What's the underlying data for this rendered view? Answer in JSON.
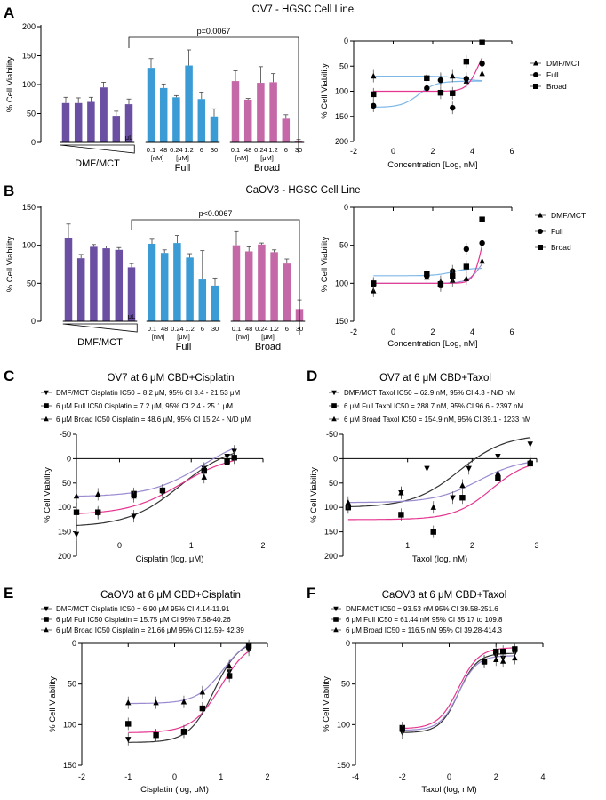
{
  "panels": {
    "A": {
      "letter": "A",
      "title": "OV7 - HGSC Cell Line"
    },
    "B": {
      "letter": "B",
      "title": "CaOV3 - HGSC Cell Line"
    },
    "C": {
      "letter": "C"
    },
    "D": {
      "letter": "D"
    },
    "E": {
      "letter": "E"
    },
    "F": {
      "letter": "F"
    }
  },
  "colors": {
    "dmf": "#6a4fa3",
    "full": "#3a9bd5",
    "broad": "#c468a8",
    "fit_black": "#333333",
    "fit_pink": "#e6358f",
    "fit_lavender": "#9b8ad0",
    "fit_lightblue": "#7db8e8"
  },
  "chart_data": [
    {
      "id": "A-bar",
      "type": "bar",
      "title": "OV7 - HGSC Cell Line",
      "ylabel": "% Cell Viability",
      "ylim": [
        0,
        200
      ],
      "yticks": [
        0,
        50,
        100,
        150,
        200
      ],
      "significance": "p=0.0067",
      "unit_label": "μL",
      "group_labels": [
        "DMF/MCT",
        "Full",
        "Broad"
      ],
      "tick_labels": [
        "0.1",
        "48",
        "0.24",
        "1.2",
        "6",
        "30"
      ],
      "sub_labels": [
        "[nM]",
        "[μM]"
      ],
      "series": [
        {
          "name": "DMF/MCT",
          "values": [
            68,
            68,
            70,
            95,
            46,
            66
          ],
          "errors": [
            10,
            9,
            8,
            9,
            8,
            9
          ]
        },
        {
          "name": "Full",
          "values": [
            129,
            94,
            78,
            133,
            75,
            45
          ],
          "errors": [
            16,
            7,
            3,
            27,
            12,
            13
          ]
        },
        {
          "name": "Broad",
          "values": [
            106,
            74,
            103,
            104,
            41,
            3
          ],
          "errors": [
            18,
            2,
            28,
            15,
            7,
            2
          ]
        }
      ]
    },
    {
      "id": "A-curve",
      "type": "scatter",
      "xlabel": "Concentration [Log, nM]",
      "ylabel": "% Cell Viability",
      "xlim": [
        -2,
        6
      ],
      "ylim": [
        0,
        200
      ],
      "xticks": [
        -2,
        0,
        2,
        4,
        6
      ],
      "yticks": [
        0,
        50,
        100,
        150,
        200
      ],
      "series": [
        {
          "name": "DMF/MCT",
          "marker": "triangle",
          "x": [
            -1,
            1.7,
            2.4,
            3,
            3.7,
            4.5
          ],
          "y": [
            70,
            72,
            75,
            70,
            80,
            65
          ],
          "fit": {
            "top": 70,
            "bottom": 80,
            "logec50": 3.5,
            "hill": 1,
            "color": "#7db8e8"
          }
        },
        {
          "name": "Full",
          "marker": "circle",
          "x": [
            -1,
            1.7,
            2.4,
            3,
            3.7,
            4.5
          ],
          "y": [
            129,
            94,
            78,
            133,
            75,
            45
          ],
          "fit": {
            "top": 132,
            "bottom": 80,
            "logec50": 1.3,
            "hill": 1,
            "color": "#7db8e8"
          }
        },
        {
          "name": "Broad",
          "marker": "square",
          "x": [
            -1,
            1.7,
            2.4,
            3,
            3.7,
            4.5
          ],
          "y": [
            106,
            74,
            103,
            104,
            41,
            3
          ],
          "fit": {
            "top": 100,
            "bottom": 0,
            "logec50": 4.3,
            "hill": 1.5,
            "color": "#e6358f"
          }
        }
      ]
    },
    {
      "id": "B-bar",
      "type": "bar",
      "title": "CaOV3 - HGSC Cell Line",
      "ylabel": "% Cell Viability",
      "ylim": [
        0,
        150
      ],
      "yticks": [
        0,
        50,
        100,
        150
      ],
      "significance": "p<0.0067",
      "unit_label": "μL",
      "group_labels": [
        "DMF/MCT",
        "Full",
        "Broad"
      ],
      "tick_labels": [
        "0.1",
        "48",
        "0.24",
        "1.2",
        "6",
        "30"
      ],
      "sub_labels": [
        "[nM]",
        "[μM]"
      ],
      "series": [
        {
          "name": "DMF/MCT",
          "values": [
            110,
            83,
            98,
            96,
            94,
            71
          ],
          "errors": [
            18,
            5,
            3,
            3,
            3,
            5
          ]
        },
        {
          "name": "Full",
          "values": [
            102,
            90,
            103,
            84,
            55,
            47
          ],
          "errors": [
            6,
            4,
            10,
            5,
            38,
            10
          ]
        },
        {
          "name": "Broad",
          "values": [
            100,
            92,
            101,
            91,
            76,
            16
          ],
          "errors": [
            18,
            6,
            2,
            3,
            6,
            12
          ]
        }
      ]
    },
    {
      "id": "B-curve",
      "type": "scatter",
      "xlabel": "Concentration [Log, nM]",
      "ylabel": "% Cell Viability",
      "xlim": [
        -2,
        6
      ],
      "ylim": [
        0,
        150
      ],
      "xticks": [
        -2,
        0,
        2,
        4,
        6
      ],
      "yticks": [
        0,
        50,
        100,
        150
      ],
      "series": [
        {
          "name": "DMF/MCT",
          "marker": "triangle",
          "x": [
            -1,
            1.7,
            2.4,
            3,
            3.7,
            4.5
          ],
          "y": [
            110,
            92,
            98,
            96,
            94,
            71
          ],
          "fit": {
            "top": 100,
            "bottom": 40,
            "logec50": 4.6,
            "hill": 1.2,
            "color": "#9b8ad0"
          }
        },
        {
          "name": "Full",
          "marker": "circle",
          "x": [
            -1,
            1.7,
            2.4,
            3,
            3.7,
            4.5
          ],
          "y": [
            102,
            90,
            103,
            84,
            55,
            47
          ],
          "fit": {
            "top": 90,
            "bottom": 80,
            "logec50": 3,
            "hill": 1,
            "color": "#7db8e8"
          }
        },
        {
          "name": "Broad",
          "marker": "square",
          "x": [
            -1,
            1.7,
            2.4,
            3,
            3.7,
            4.5
          ],
          "y": [
            100,
            88,
            101,
            90,
            78,
            16
          ],
          "fit": {
            "top": 100,
            "bottom": 0,
            "logec50": 4.5,
            "hill": 2,
            "color": "#e6358f"
          }
        }
      ]
    },
    {
      "id": "C",
      "type": "scatter",
      "title": "OV7 at 6 μM CBD+Cisplatin",
      "xlabel": "Cisplatin (log, μM)",
      "ylabel": "% Cell Viability",
      "xlim": [
        -0.6,
        2
      ],
      "ylim": [
        -50,
        200
      ],
      "xticks": [
        0,
        1,
        2
      ],
      "yticks": [
        -50,
        0,
        50,
        100,
        150,
        200
      ],
      "series": [
        {
          "name": "DMF/MCT",
          "legend": "DMF/MCT Cisplatin IC50 = 8.2 μM, 95% CI 3.4 - 21.53 μM",
          "marker": "triangle-down",
          "x": [
            -0.6,
            -0.3,
            0.2,
            0.6,
            1.18,
            1.5,
            1.6
          ],
          "y": [
            155,
            112,
            118,
            70,
            20,
            -5,
            -15
          ],
          "fit": {
            "top": 140,
            "bottom": -30,
            "logec50": 0.85,
            "hill": 1.2,
            "color": "#333333"
          }
        },
        {
          "name": "Full",
          "legend": "6 μM Full IC50 Cisplatin = 7.2 μM, 95% CI 2.4 - 25.1 μM",
          "marker": "square",
          "x": [
            -0.6,
            -0.3,
            0.2,
            0.6,
            1.18,
            1.5,
            1.6
          ],
          "y": [
            110,
            110,
            72,
            65,
            25,
            5,
            -2
          ],
          "fit": {
            "top": 115,
            "bottom": -10,
            "logec50": 0.85,
            "hill": 1.2,
            "color": "#e6358f"
          }
        },
        {
          "name": "Broad",
          "legend": "6 μM Broad IC50 Cisplatin = 48.6 μM, 95% CI 15.24 - N/D μM",
          "marker": "triangle",
          "x": [
            -0.6,
            -0.3,
            0.2,
            0.6,
            1.18,
            1.5,
            1.6
          ],
          "y": [
            77,
            73,
            77,
            65,
            38,
            8,
            -3
          ],
          "fit": {
            "top": 78,
            "bottom": -50,
            "logec50": 1.15,
            "hill": 1.2,
            "color": "#9b8ad0"
          }
        }
      ]
    },
    {
      "id": "D",
      "type": "scatter",
      "title": "OV7 at 6 μM CBD+Taxol",
      "xlabel": "Taxol (log, nM)",
      "ylabel": "% Cell Viability",
      "xlim": [
        0,
        3
      ],
      "ylim": [
        -50,
        200
      ],
      "xticks": [
        1,
        2,
        3
      ],
      "yticks": [
        -50,
        0,
        50,
        100,
        150,
        200
      ],
      "series": [
        {
          "name": "DMF/MCT",
          "legend": "DMF/MCT Taxol IC50 = 62.9 nM, 95% CI 4.3 - N/D nM",
          "marker": "triangle-down",
          "x": [
            0.08,
            0.9,
            1.3,
            1.7,
            1.95,
            2.4,
            2.9
          ],
          "y": [
            100,
            70,
            20,
            80,
            20,
            -5,
            -30
          ],
          "fit": {
            "top": 100,
            "bottom": -50,
            "logec50": 1.8,
            "hill": 1.2,
            "color": "#333333"
          }
        },
        {
          "name": "Full",
          "legend": "6 μM Full Taxol IC50 = 288.7 nM, 95% CI 96.6 - 2397 nM",
          "marker": "square",
          "x": [
            0.08,
            0.9,
            1.4,
            1.85,
            2.4,
            2.9
          ],
          "y": [
            100,
            115,
            150,
            80,
            40,
            10
          ],
          "fit": {
            "top": 125,
            "bottom": 0,
            "logec50": 2.3,
            "hill": 1.5,
            "color": "#e6358f"
          }
        },
        {
          "name": "Broad",
          "legend": "6 μM Broad Taxol IC50 = 154.9 nM, 95% CI 39.1 - 1233 nM",
          "marker": "triangle",
          "x": [
            0.08,
            0.9,
            1.4,
            1.85,
            2.4,
            2.9
          ],
          "y": [
            90,
            70,
            100,
            55,
            30,
            5
          ],
          "fit": {
            "top": 90,
            "bottom": 0,
            "logec50": 2.1,
            "hill": 1.3,
            "color": "#9b8ad0"
          }
        }
      ]
    },
    {
      "id": "E",
      "type": "scatter",
      "title": "CaOV3 at 6 μM CBD+Cisplatin",
      "xlabel": "Cisplatin (log, μM)",
      "ylabel": "% Cell Viability",
      "xlim": [
        -2,
        2
      ],
      "ylim": [
        0,
        150
      ],
      "xticks": [
        -2,
        -1,
        0,
        1,
        2
      ],
      "yticks": [
        0,
        50,
        100,
        150
      ],
      "series": [
        {
          "name": "DMF/MCT",
          "legend": "DMF/MCT Cisplatin IC50 = 6.90 μM 95% CI 4.14-11.91",
          "marker": "triangle-down",
          "x": [
            -1,
            -0.4,
            0.2,
            0.6,
            1.18,
            1.6
          ],
          "y": [
            118,
            113,
            108,
            80,
            35,
            8
          ],
          "fit": {
            "top": 122,
            "bottom": -5,
            "logec50": 0.85,
            "hill": 1.6,
            "color": "#333333"
          }
        },
        {
          "name": "Full",
          "legend": "6 μM Full IC50 Cisplatin = 15.75 μM CI 95% 7.58-40.26",
          "marker": "square",
          "x": [
            -1,
            -0.4,
            0.2,
            0.6,
            1.18,
            1.6
          ],
          "y": [
            99,
            113,
            109,
            80,
            40,
            3
          ],
          "fit": {
            "top": 110,
            "bottom": -5,
            "logec50": 1.0,
            "hill": 1.4,
            "color": "#e6358f"
          }
        },
        {
          "name": "Broad",
          "legend": "6 μM Broad IC50 Cisplatin = 21.66 μM 95% CI 12.59- 42.39",
          "marker": "triangle",
          "x": [
            -1,
            -0.4,
            0.2,
            0.6,
            1.18,
            1.6
          ],
          "y": [
            73,
            73,
            72,
            60,
            28,
            5
          ],
          "fit": {
            "top": 74,
            "bottom": -10,
            "logec50": 1.05,
            "hill": 1.5,
            "color": "#9b8ad0"
          }
        }
      ]
    },
    {
      "id": "F",
      "type": "scatter",
      "title": "CaOV3 at 6 μM CBD+Taxol",
      "xlabel": "Taxol (log, nM)",
      "ylabel": "% Cell Viability",
      "xlim": [
        -4,
        4
      ],
      "ylim": [
        0,
        150
      ],
      "xticks": [
        -4,
        -2,
        0,
        2,
        4
      ],
      "yticks": [
        0,
        50,
        100,
        150
      ],
      "series": [
        {
          "name": "DMF/MCT",
          "legend": "DMF/MCT IC50 = 93.53 nM 95% CI 39.58-251.6",
          "marker": "triangle-down",
          "x": [
            -2,
            1.5,
            2,
            2.3,
            2.8
          ],
          "y": [
            110,
            22,
            15,
            18,
            12
          ],
          "fit": {
            "top": 110,
            "bottom": 12,
            "logec50": 0.4,
            "hill": 1.1,
            "color": "#333333"
          }
        },
        {
          "name": "Full",
          "legend": "6 μM Full IC50 = 61.44 nM 95% CI 35.17 to 109.8",
          "marker": "square",
          "x": [
            -2,
            1.5,
            2,
            2.3,
            2.8
          ],
          "y": [
            104,
            22,
            10,
            10,
            7
          ],
          "fit": {
            "top": 105,
            "bottom": 5,
            "logec50": 0.4,
            "hill": 1.0,
            "color": "#e6358f"
          }
        },
        {
          "name": "Broad",
          "legend": "6 μM Broad IC50 = 116.5 nM 95% CI 39.28-414.3",
          "marker": "triangle",
          "x": [
            -2,
            1.5,
            2,
            2.3,
            2.8
          ],
          "y": [
            106,
            23,
            20,
            22,
            18
          ],
          "fit": {
            "top": 107,
            "bottom": 15,
            "logec50": 0.4,
            "hill": 1.1,
            "color": "#9b8ad0"
          }
        }
      ]
    }
  ]
}
